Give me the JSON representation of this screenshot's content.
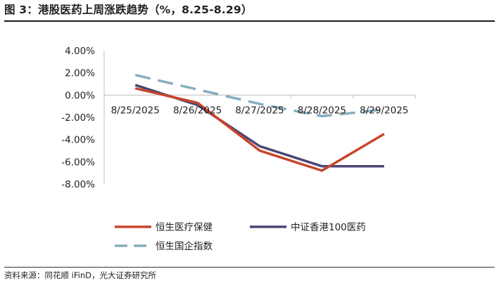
{
  "title": "图 3：港股医药上周涨跌趋势（%，8.25-8.29）",
  "source": "资料来源：同花顺 iFinD，光大证券研究所",
  "chart_data": {
    "type": "line",
    "x": [
      "8/25/2025",
      "8/26/2025",
      "8/27/2025",
      "8/28/2025",
      "8/29/2025"
    ],
    "y_ticks": [
      "4.00%",
      "2.00%",
      "0.00%",
      "-2.00%",
      "-4.00%",
      "-6.00%",
      "-8.00%"
    ],
    "ylim": [
      -8,
      4
    ],
    "y_unit": "%",
    "series": [
      {
        "name": "恒生医疗保健",
        "color": "#c8452a",
        "dash": "solid",
        "values": [
          0.6,
          -0.7,
          -5.0,
          -6.8,
          -3.5
        ]
      },
      {
        "name": "中证香港100医药",
        "color": "#4b4673",
        "dash": "solid",
        "values": [
          0.9,
          -0.9,
          -4.6,
          -6.4,
          -6.4
        ]
      },
      {
        "name": "恒生国企指数",
        "color": "#85aebf",
        "dash": "dashed",
        "values": [
          1.8,
          0.5,
          -0.8,
          -1.9,
          -1.3
        ]
      }
    ],
    "legend": "bottom",
    "grid": false
  }
}
